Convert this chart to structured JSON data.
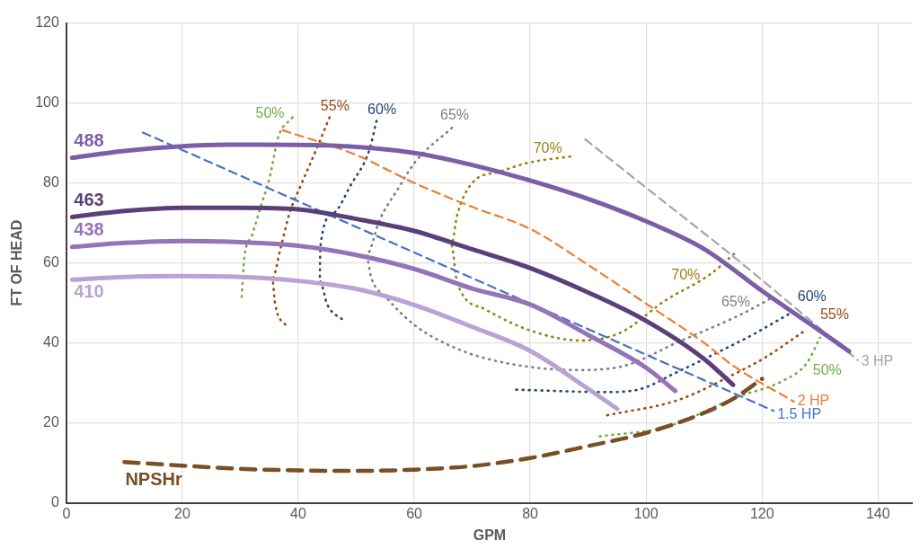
{
  "chart_data": {
    "type": "line",
    "xlabel": "GPM",
    "ylabel": "FT OF HEAD",
    "xlim": [
      0,
      146
    ],
    "ylim": [
      0,
      120
    ],
    "xticks": [
      0,
      20,
      40,
      60,
      80,
      100,
      120,
      140
    ],
    "yticks": [
      0,
      20,
      40,
      60,
      80,
      100,
      120
    ],
    "grid": true,
    "legend": false,
    "marker": "none",
    "series": [
      {
        "name": "488",
        "color": "#7b5ea7",
        "line_style": "solid",
        "x": [
          1,
          10,
          20,
          33,
          45,
          60,
          70,
          80,
          90,
          100,
          110,
          120,
          130,
          135
        ],
        "values": [
          86.3,
          88,
          89.2,
          89.6,
          89.4,
          87.5,
          84.5,
          80.6,
          76,
          70.4,
          63.5,
          53,
          43,
          37.9
        ]
      },
      {
        "name": "463",
        "color": "#5b3f7a",
        "line_style": "solid",
        "x": [
          1,
          10,
          20,
          30,
          40,
          50,
          60,
          70,
          80,
          90,
          100,
          110,
          115
        ],
        "values": [
          71.5,
          73,
          73.8,
          73.8,
          73.4,
          71,
          68,
          63.4,
          58.7,
          52.6,
          45.5,
          36,
          29.5
        ]
      },
      {
        "name": "438",
        "color": "#9474b8",
        "line_style": "solid",
        "x": [
          1,
          10,
          20,
          30,
          40,
          50,
          60,
          70,
          80,
          90,
          100,
          105
        ],
        "values": [
          64,
          65,
          65.5,
          65.2,
          64.3,
          62,
          58.5,
          53.6,
          49.6,
          42,
          33.8,
          28
        ]
      },
      {
        "name": "410",
        "color": "#b9a3d3",
        "line_style": "solid",
        "x": [
          1,
          10,
          20,
          30,
          40,
          50,
          60,
          70,
          80,
          90,
          95
        ],
        "values": [
          55.8,
          56.5,
          56.7,
          56.5,
          55.5,
          53.5,
          49.5,
          44,
          38,
          28.5,
          23.5
        ]
      },
      {
        "name": "NPSHr",
        "color": "#7a4f25",
        "line_style": "dashed",
        "x": [
          10,
          20,
          30,
          40,
          50,
          60,
          70,
          80,
          90,
          100,
          110,
          115,
          120
        ],
        "values": [
          10.2,
          9.3,
          8.5,
          8.1,
          8,
          8.3,
          9.2,
          11.2,
          14.2,
          17.5,
          22.5,
          26,
          31
        ]
      },
      {
        "name": "1.5 HP",
        "color": "#4472c4",
        "line_style": "dashed",
        "x": [
          13.2,
          45,
          122
        ],
        "values": [
          92.6,
          72.2,
          23
        ]
      },
      {
        "name": "2 HP",
        "color": "#ed7d31",
        "line_style": "dashed",
        "x": [
          37.3,
          50,
          60,
          70,
          80,
          90,
          100,
          110,
          115,
          125.5
        ],
        "values": [
          93.2,
          87,
          80,
          74,
          68.5,
          59.5,
          49.8,
          40,
          34.3,
          25.3
        ]
      },
      {
        "name": "3 HP",
        "color": "#a5a5a5",
        "line_style": "dashed",
        "x": [
          89.5,
          100,
          114.7,
          136.5
        ],
        "values": [
          90.9,
          78.8,
          62,
          35.7
        ]
      },
      {
        "name": "50%",
        "color": "#70ad47",
        "line_style": "dotted",
        "x": [
          39,
          36.6,
          35,
          33.5,
          32,
          30.7,
          30.2,
          60,
          92,
          103.5,
          115.6,
          123.7,
          127.7,
          130
        ],
        "values": [
          96.4,
          91.7,
          81,
          74,
          66.8,
          61.3,
          50.6,
          null,
          16.6,
          19,
          26.4,
          30.6,
          34.9,
          41.3
        ]
      },
      {
        "name": "55%",
        "color": "#9e480e",
        "line_style": "dotted",
        "x": [
          45.4,
          43,
          40.5,
          38.5,
          37,
          35.5,
          36,
          38,
          60,
          93.3,
          105.5,
          115.6,
          120.6,
          127.7
        ],
        "values": [
          96.4,
          88,
          79.6,
          72.5,
          64,
          56.2,
          49.8,
          44,
          null,
          21.9,
          25.7,
          32.5,
          36.4,
          43.4
        ]
      },
      {
        "name": "60%",
        "color": "#264478",
        "line_style": "dotted",
        "x": [
          53.5,
          52.2,
          49.1,
          46.1,
          43.8,
          43.7,
          45,
          47.9,
          60,
          77.6,
          93,
          98.6,
          105.5,
          113,
          118.7,
          125.2
        ],
        "values": [
          95.5,
          88,
          79.6,
          72.5,
          64,
          55.5,
          49.6,
          45.5,
          null,
          28.3,
          27.7,
          28.3,
          32.8,
          38.1,
          42.3,
          47.7
        ]
      },
      {
        "name": "65%",
        "color": "#7f7f7f",
        "line_style": "dotted",
        "x": [
          66.5,
          60.2,
          57.1,
          54.1,
          51.7,
          52.6,
          55.2,
          60.2,
          66.8,
          74.7,
          87.7,
          95.5,
          105.8,
          116.2,
          121.5
        ],
        "values": [
          93.8,
          85.3,
          78.3,
          71,
          61.9,
          56.2,
          51.3,
          44.3,
          38.9,
          35.3,
          33.2,
          34,
          40.4,
          47,
          51.1
        ]
      },
      {
        "name": "70%",
        "color": "#9c7f10",
        "line_style": "dotted",
        "x": [
          86.9,
          79.8,
          74.7,
          70,
          67.4,
          66.4,
          67.4,
          72.1,
          79.8,
          88.7,
          95.5,
          103.3,
          111.1,
          115.2
        ],
        "values": [
          86.6,
          85.1,
          82.8,
          80,
          71.9,
          64.5,
          55.1,
          48.5,
          43.2,
          40.6,
          42.5,
          50.6,
          57.2,
          62.3
        ]
      }
    ]
  }
}
